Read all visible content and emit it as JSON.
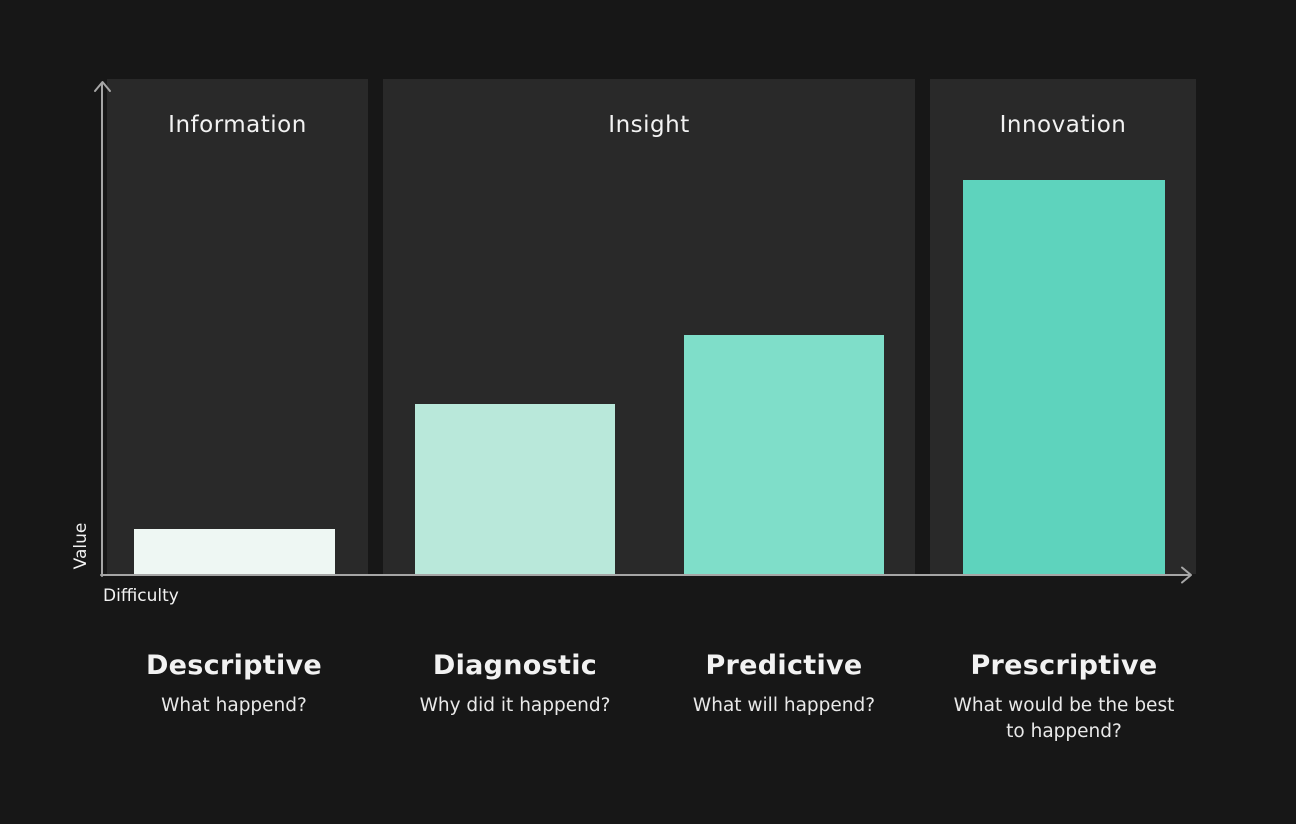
{
  "colors": {
    "background": "#171717",
    "panel": "#292929",
    "axis": "#a6a6a6",
    "text_primary": "#f2f2f2",
    "text_secondary": "#e9e9e9"
  },
  "chart_data": {
    "type": "bar",
    "title": "",
    "categories": [
      "Descriptive",
      "Diagnostic",
      "Predictive",
      "Prescriptive"
    ],
    "values": [
      9.1,
      34.3,
      48.3,
      79.6
    ],
    "ylim": [
      0,
      100
    ],
    "xlabel": "Difficulty",
    "ylabel": "Value",
    "grid": false,
    "legend": false,
    "bar_colors": [
      "#eef7f3",
      "#b9e8da",
      "#7fdec9",
      "#5ed3bd"
    ],
    "stage_bands": [
      {
        "label": "Information",
        "columns": [
          "Descriptive"
        ]
      },
      {
        "label": "Insight",
        "columns": [
          "Diagnostic",
          "Predictive"
        ]
      },
      {
        "label": "Innovation",
        "columns": [
          "Prescriptive"
        ]
      }
    ]
  },
  "stages": [
    {
      "label": "Information"
    },
    {
      "label": "Insight"
    },
    {
      "label": "Innovation"
    }
  ],
  "columns": [
    {
      "title": "Descriptive",
      "subtitle": "What happend?"
    },
    {
      "title": "Diagnostic",
      "subtitle": "Why did it happend?"
    },
    {
      "title": "Predictive",
      "subtitle": "What will happend?"
    },
    {
      "title": "Prescriptive",
      "subtitle": "What would be the best to happend?"
    }
  ],
  "axes": {
    "x_label": "Difficulty",
    "y_label": "Value"
  }
}
